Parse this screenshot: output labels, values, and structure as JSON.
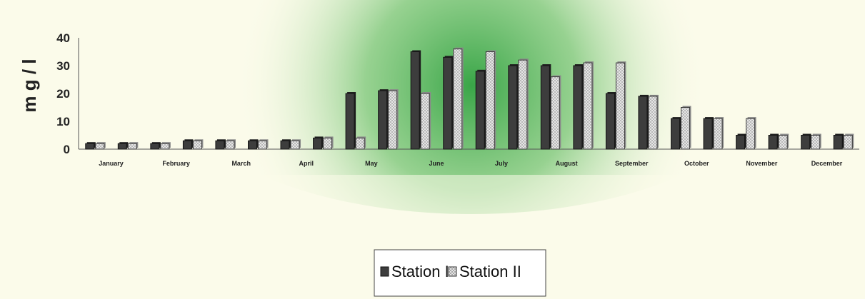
{
  "chart_data": {
    "type": "bar",
    "ylabel": "m g / l",
    "ylim": [
      0,
      40
    ],
    "yticks": [
      0,
      10,
      20,
      30,
      40
    ],
    "grid": false,
    "legend_position": "bottom-center",
    "colors": {
      "station_1": "#3d3d3d",
      "station_2": "#dadada",
      "background": "#fbfbea",
      "accent_green": "#2fa13f"
    },
    "month_labels": [
      "January",
      "February",
      "March",
      "April",
      "May",
      "June",
      "July",
      "August",
      "September",
      "October",
      "November",
      "December"
    ],
    "series": [
      {
        "name": "Station I",
        "values": [
          2,
          2,
          2,
          3,
          3,
          3,
          3,
          4,
          20,
          21,
          35,
          33,
          28,
          30,
          30,
          30,
          20,
          19,
          11,
          11,
          5,
          5,
          5,
          5
        ]
      },
      {
        "name": "Station II",
        "values": [
          2,
          2,
          2,
          3,
          3,
          3,
          3,
          4,
          4,
          21,
          20,
          36,
          35,
          32,
          26,
          31,
          31,
          19,
          15,
          11,
          11,
          5,
          5,
          5
        ]
      }
    ]
  }
}
